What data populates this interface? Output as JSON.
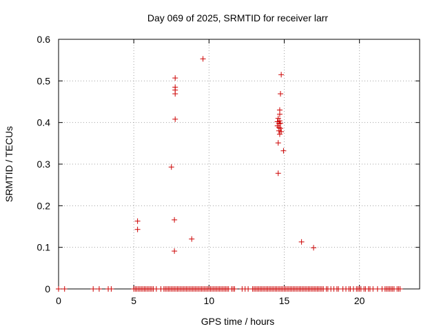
{
  "chart_data": {
    "type": "scatter",
    "title": "Day 069 of 2025, SRMTID for receiver larr",
    "xlabel": "GPS time / hours",
    "ylabel": "SRMTID / TECUs",
    "xlim": [
      0,
      24
    ],
    "ylim": [
      0,
      0.6
    ],
    "xticks": [
      0,
      5,
      10,
      15,
      20
    ],
    "yticks": [
      0,
      0.1,
      0.2,
      0.3,
      0.4,
      0.5,
      0.6
    ],
    "grid": true,
    "marker": "+",
    "color": "#cc0000",
    "series": [
      {
        "name": "SRMTID",
        "points": [
          [
            5.25,
            0.163
          ],
          [
            5.25,
            0.143
          ],
          [
            7.5,
            0.293
          ],
          [
            7.7,
            0.166
          ],
          [
            7.7,
            0.091
          ],
          [
            7.75,
            0.408
          ],
          [
            7.75,
            0.507
          ],
          [
            7.75,
            0.485
          ],
          [
            7.75,
            0.478
          ],
          [
            7.75,
            0.469
          ],
          [
            8.85,
            0.12
          ],
          [
            9.6,
            0.553
          ],
          [
            14.6,
            0.278
          ],
          [
            14.6,
            0.351
          ],
          [
            14.55,
            0.392
          ],
          [
            14.55,
            0.402
          ],
          [
            14.6,
            0.41
          ],
          [
            14.65,
            0.38
          ],
          [
            14.65,
            0.388
          ],
          [
            14.65,
            0.397
          ],
          [
            14.7,
            0.372
          ],
          [
            14.7,
            0.404
          ],
          [
            14.7,
            0.42
          ],
          [
            14.7,
            0.43
          ],
          [
            14.75,
            0.386
          ],
          [
            14.75,
            0.398
          ],
          [
            14.75,
            0.469
          ],
          [
            14.8,
            0.515
          ],
          [
            14.8,
            0.378
          ],
          [
            14.95,
            0.332
          ],
          [
            16.15,
            0.113
          ],
          [
            16.95,
            0.099
          ]
        ],
        "zero_x": [
          0.0,
          0.4,
          2.3,
          2.7,
          3.3,
          3.5,
          5.0,
          5.1,
          5.2,
          5.3,
          5.4,
          5.5,
          5.6,
          5.7,
          5.8,
          5.9,
          6.0,
          6.1,
          6.2,
          6.3,
          6.5,
          6.8,
          7.0,
          7.1,
          7.2,
          7.3,
          7.4,
          7.5,
          7.6,
          7.7,
          7.8,
          7.9,
          8.0,
          8.1,
          8.2,
          8.3,
          8.4,
          8.5,
          8.6,
          8.7,
          8.8,
          8.9,
          9.0,
          9.1,
          9.2,
          9.3,
          9.4,
          9.5,
          9.6,
          9.7,
          9.8,
          9.9,
          10.0,
          10.1,
          10.2,
          10.3,
          10.4,
          10.5,
          10.6,
          10.7,
          10.8,
          10.9,
          11.0,
          11.1,
          11.2,
          11.3,
          11.5,
          11.6,
          11.7,
          12.2,
          12.4,
          12.6,
          12.9,
          13.0,
          13.1,
          13.2,
          13.3,
          13.4,
          13.5,
          13.6,
          13.7,
          13.8,
          13.9,
          14.0,
          14.1,
          14.2,
          14.3,
          14.4,
          14.5,
          14.6,
          14.7,
          14.8,
          14.9,
          15.0,
          15.1,
          15.2,
          15.3,
          15.4,
          15.5,
          15.6,
          15.7,
          15.8,
          15.9,
          16.0,
          16.1,
          16.2,
          16.3,
          16.4,
          16.5,
          16.6,
          16.7,
          16.8,
          16.9,
          17.0,
          17.1,
          17.2,
          17.3,
          17.4,
          17.5,
          17.6,
          17.8,
          17.9,
          18.1,
          18.3,
          18.5,
          18.6,
          18.9,
          19.1,
          19.3,
          19.4,
          19.6,
          19.8,
          19.9,
          20.0,
          20.1,
          20.3,
          20.4,
          20.6,
          20.7,
          20.9,
          21.2,
          21.5,
          21.7,
          21.8,
          21.9,
          22.0,
          22.1,
          22.2,
          22.3,
          22.5,
          22.6,
          22.7
        ]
      }
    ]
  }
}
